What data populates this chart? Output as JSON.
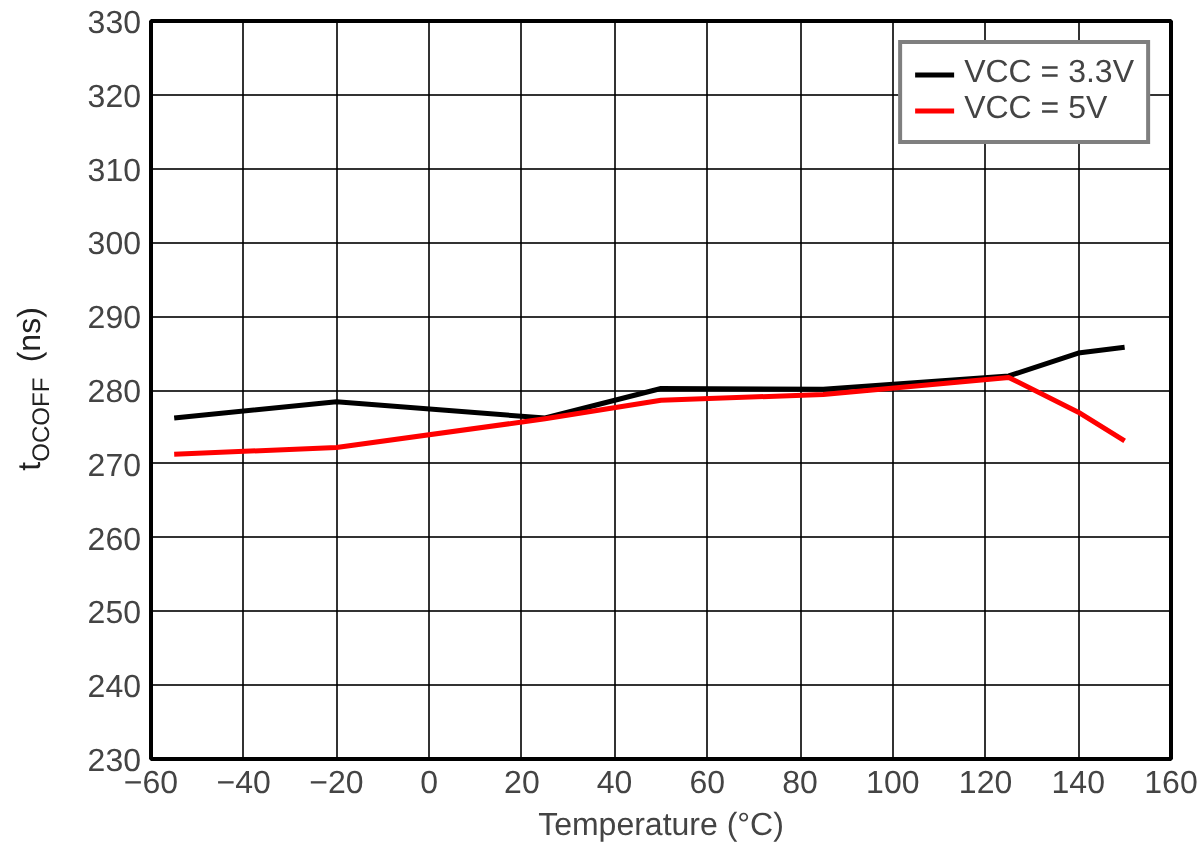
{
  "chart_data": {
    "type": "line",
    "xlabel": "Temperature (°C)",
    "ylabel": "t$_{OCOFF}$ (ns)",
    "x": [
      -55,
      -20,
      25,
      50,
      85,
      125,
      140,
      150
    ],
    "series": [
      {
        "name": "VCC = 3.3V",
        "color": "#000000",
        "values": [
          276.2,
          278.4,
          276.2,
          280.2,
          280.1,
          281.9,
          285,
          285.8
        ]
      },
      {
        "name": "VCC = 5V",
        "color": "#ff0000",
        "values": [
          271.3,
          272.2,
          276.1,
          278.6,
          279.4,
          281.7,
          277,
          273.1
        ]
      }
    ],
    "xlim": [
      -60,
      160
    ],
    "xticks": [
      -60,
      -40,
      -20,
      0,
      20,
      40,
      60,
      80,
      100,
      120,
      140,
      160
    ],
    "ylim": [
      230,
      330
    ],
    "yticks": [
      230,
      240,
      250,
      260,
      270,
      280,
      290,
      300,
      310,
      320,
      330
    ],
    "grid": true,
    "legend": "top right",
    "line_style": "solid"
  }
}
